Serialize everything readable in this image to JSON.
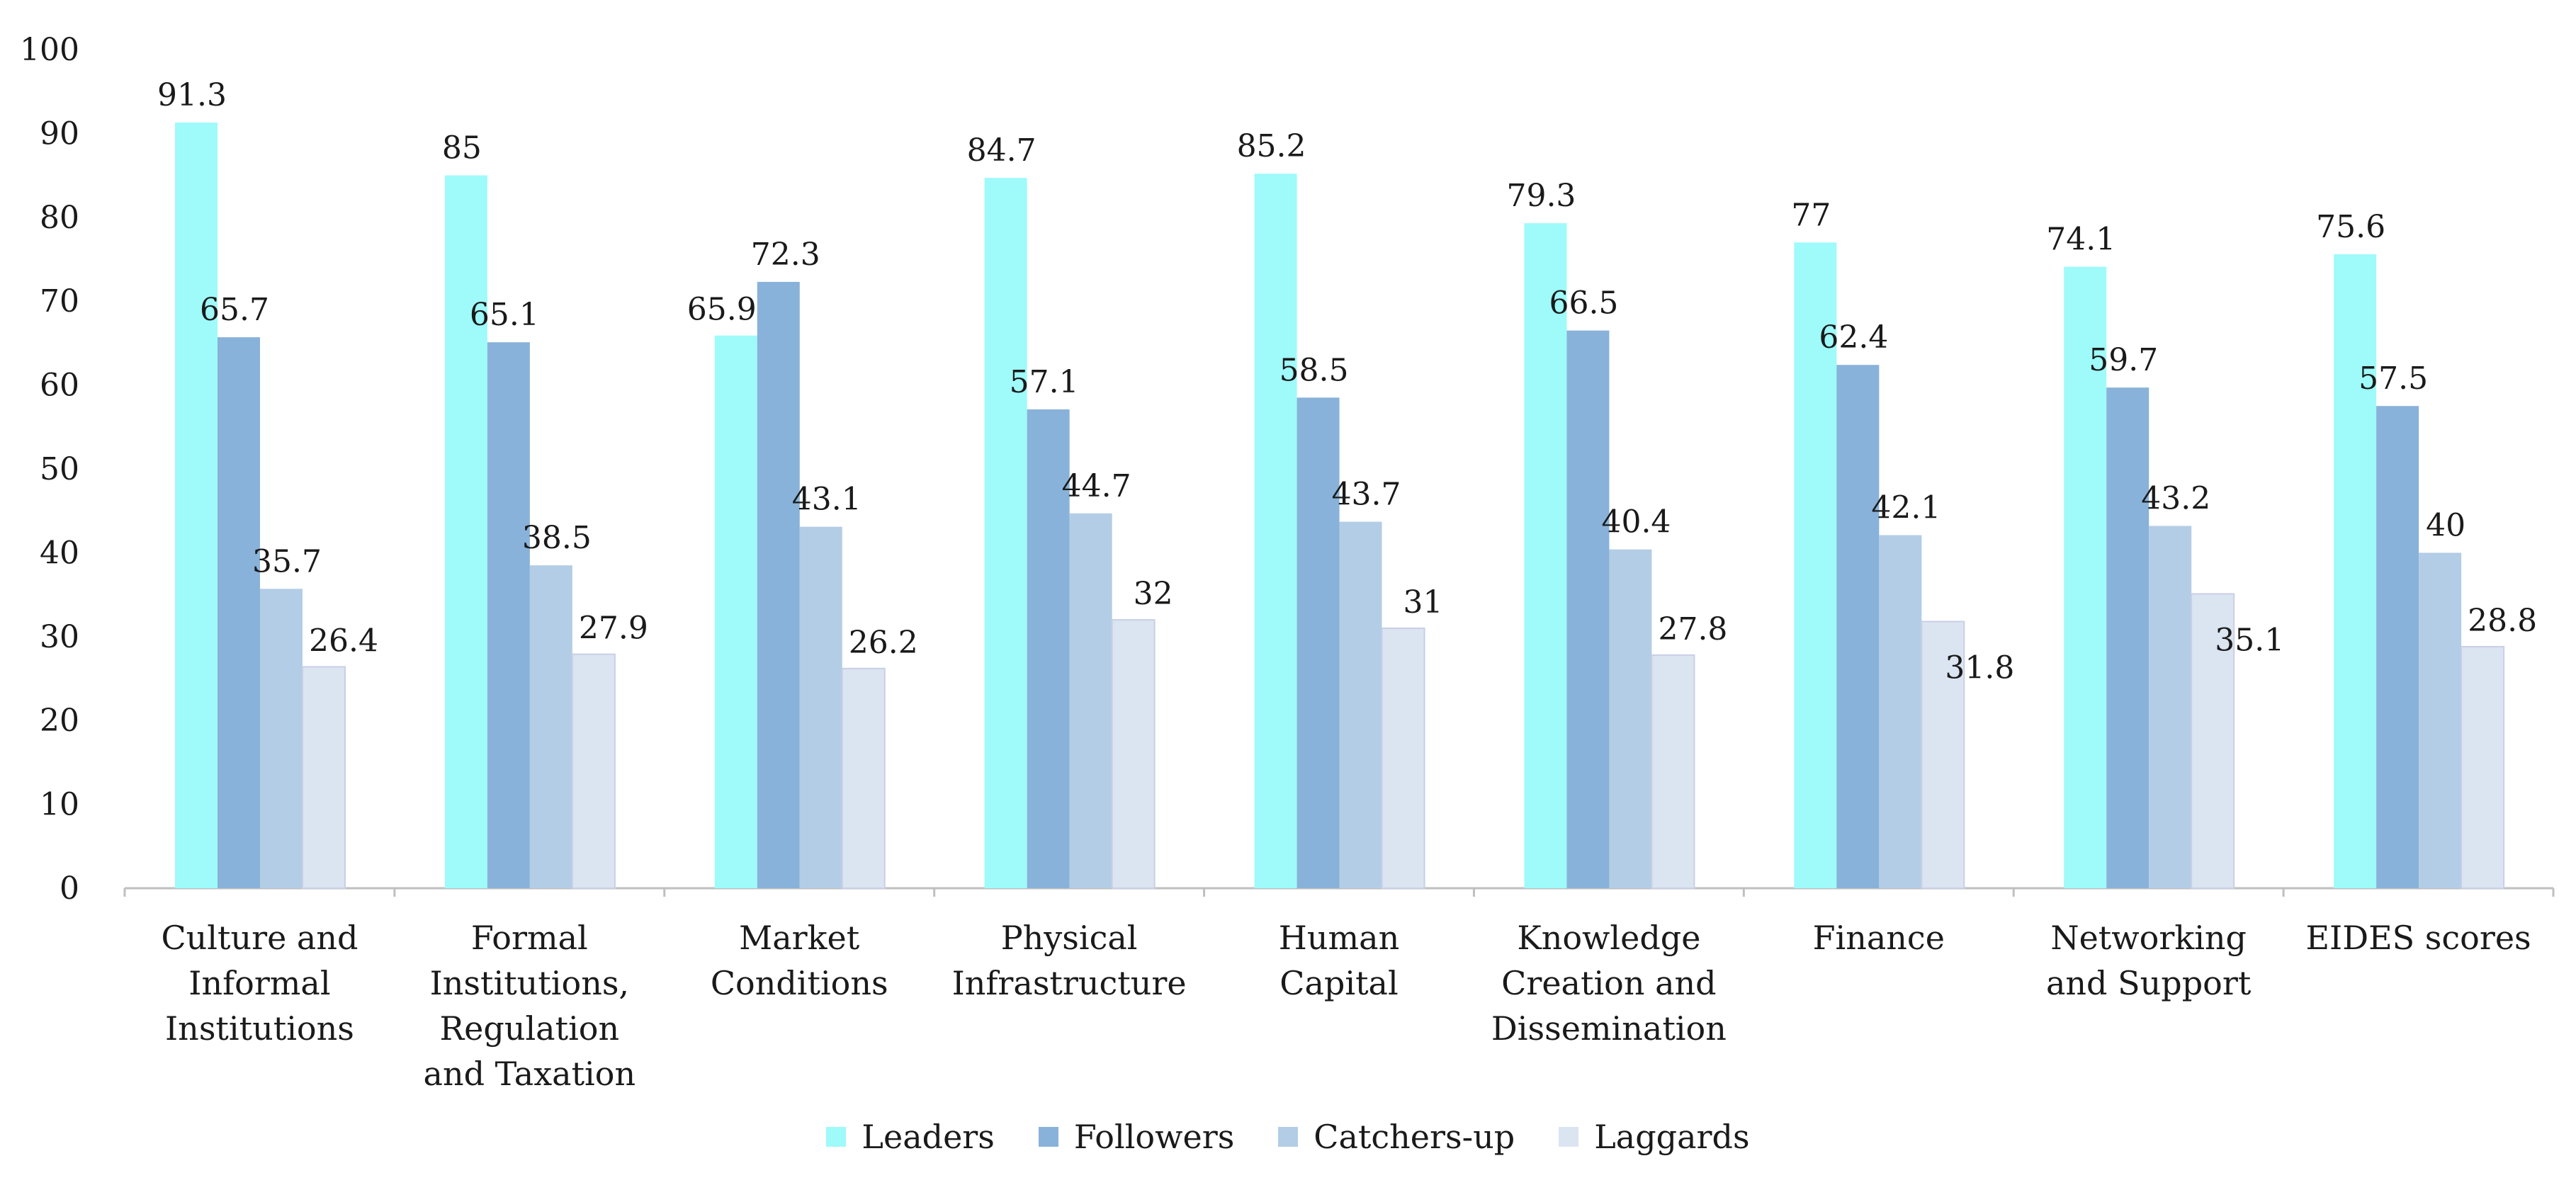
{
  "chart_data": {
    "type": "bar",
    "title": "",
    "xlabel": "",
    "ylabel": "",
    "ylim": [
      0,
      100
    ],
    "yticks": [
      0,
      10,
      20,
      30,
      40,
      50,
      60,
      70,
      80,
      90,
      100
    ],
    "grid": false,
    "legend_position": "bottom-center",
    "categories": [
      [
        "Culture and",
        "Informal",
        "Institutions"
      ],
      [
        "Formal",
        "Institutions,",
        "Regulation",
        "and Taxation"
      ],
      [
        "Market",
        "Conditions"
      ],
      [
        "Physical",
        "Infrastructure"
      ],
      [
        "Human",
        "Capital"
      ],
      [
        "Knowledge",
        "Creation and",
        "Dissemination"
      ],
      [
        "Finance"
      ],
      [
        "Networking",
        "and Support"
      ],
      [
        "EIDES scores"
      ]
    ],
    "series": [
      {
        "name": "Leaders",
        "color": "#9ffafa",
        "values": [
          91.3,
          85,
          65.9,
          84.7,
          85.2,
          79.3,
          77,
          74.1,
          75.6
        ]
      },
      {
        "name": "Followers",
        "color": "#88b2d9",
        "values": [
          65.7,
          65.1,
          72.3,
          57.1,
          58.5,
          66.5,
          62.4,
          59.7,
          57.5
        ]
      },
      {
        "name": "Catchers-up",
        "color": "#b3cde6",
        "values": [
          35.7,
          38.5,
          43.1,
          44.7,
          43.7,
          40.4,
          42.1,
          43.2,
          40
        ]
      },
      {
        "name": "Laggards",
        "color": "#dbe5f1",
        "values": [
          26.4,
          27.9,
          26.2,
          32,
          31,
          27.8,
          31.8,
          35.1,
          28.8
        ]
      }
    ]
  }
}
